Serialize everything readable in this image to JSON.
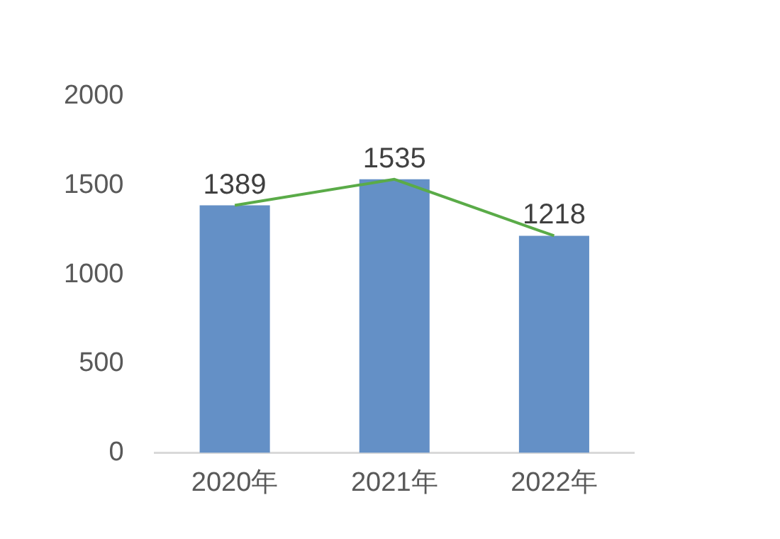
{
  "chart_data": {
    "type": "bar",
    "categories": [
      "2020年",
      "2021年",
      "2022年"
    ],
    "series": [
      {
        "color": "#6490c6",
        "values": [
          1389,
          1535,
          1218
        ],
        "value_labels": [
          "1389",
          "1535",
          "1218"
        ]
      },
      {
        "type": "line",
        "color": "#5aab48",
        "values": [
          1389,
          1535,
          1218
        ]
      }
    ],
    "ylim": [
      0,
      2000
    ],
    "yticks": [
      0,
      500,
      1000,
      1500,
      2000
    ],
    "grid": false,
    "legend": false,
    "marker": "none"
  }
}
